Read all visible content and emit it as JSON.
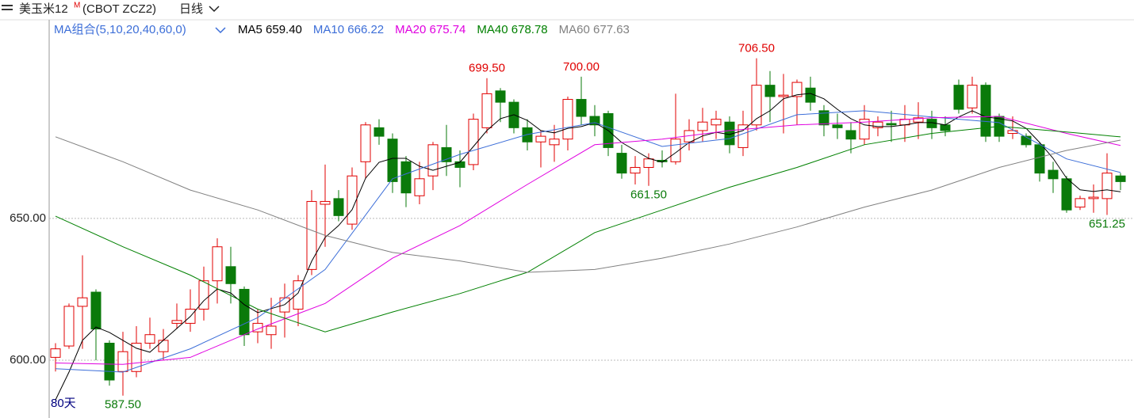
{
  "header": {
    "title": "美玉米12",
    "title_sup": "M",
    "symbol": "(CBOT ZCZ2)",
    "period": "日线",
    "ma_group": "MA组合(5,10,20,40,60,0)"
  },
  "chart_data": {
    "type": "candlestick",
    "period_label": "80天",
    "ylim": [
      579.6,
      713.1
    ],
    "yticks": [
      {
        "value": 600,
        "label": "600.00"
      },
      {
        "value": 650,
        "label": "650.00"
      }
    ],
    "grid": true,
    "up_color": "#e00000",
    "down_color": "#0a7a0a",
    "open": [
      601,
      605,
      619,
      624,
      606,
      596,
      596,
      606,
      603,
      613,
      613,
      618,
      628,
      633,
      625,
      610,
      609,
      617,
      618,
      632,
      655,
      657,
      648,
      670,
      682,
      678,
      670,
      658,
      665,
      675,
      670,
      669,
      682,
      695,
      691,
      682,
      677,
      676,
      678,
      692,
      686,
      687,
      673,
      666,
      668,
      670.5,
      670,
      677,
      681,
      683,
      684,
      675,
      683,
      697,
      693,
      693,
      696,
      688,
      683,
      681,
      678,
      682,
      683.5,
      683,
      684,
      685,
      683,
      697,
      689,
      697,
      686,
      680,
      679,
      676,
      667,
      664,
      654,
      657,
      657,
      665
    ],
    "close": [
      604,
      619,
      622,
      611,
      593,
      603,
      606,
      609,
      607,
      614,
      618,
      628,
      640,
      627,
      609,
      613,
      612,
      622,
      628,
      656,
      656,
      651,
      665,
      683,
      679,
      663,
      659,
      664,
      676,
      670,
      668,
      685,
      694,
      691,
      682,
      677,
      679,
      678,
      692,
      686,
      683,
      675,
      666,
      668,
      671,
      670,
      678,
      681,
      684,
      685,
      676,
      683,
      697,
      693,
      693.5,
      698,
      691,
      683,
      682,
      678,
      685,
      684,
      683,
      685,
      685.5,
      682,
      681,
      688.5,
      697,
      679,
      679,
      681,
      676,
      666,
      664,
      653,
      657,
      657.5,
      666,
      663
    ],
    "high": [
      606,
      620,
      637,
      625,
      607,
      610,
      612,
      615,
      611,
      620,
      625,
      633,
      643,
      640,
      626,
      618,
      622,
      627,
      630,
      660,
      669,
      660,
      668,
      684,
      685,
      680,
      672,
      670,
      677,
      683,
      674,
      687,
      699.5,
      696,
      692,
      685,
      681,
      683,
      693,
      700,
      690,
      688,
      676,
      672,
      673,
      674,
      694,
      685,
      689,
      688,
      686,
      688,
      706.5,
      702,
      701,
      699,
      700,
      690,
      687,
      684,
      690,
      686,
      688,
      690,
      691,
      688,
      686,
      699,
      700,
      698,
      687,
      686,
      680,
      677,
      670,
      665,
      658,
      662,
      673,
      666
    ],
    "low": [
      596,
      604,
      604,
      600,
      591,
      587.5,
      594,
      604,
      600,
      611,
      610,
      614,
      620,
      620,
      605,
      606,
      604,
      608,
      612,
      630,
      640,
      649,
      646,
      664,
      676,
      659,
      654,
      655,
      660,
      665,
      661,
      667,
      680,
      684,
      680,
      674,
      668,
      670,
      674,
      683,
      679,
      672,
      664,
      662,
      661.5,
      668,
      669,
      674,
      677,
      678,
      673,
      672,
      681,
      684,
      680,
      683,
      688,
      679,
      678,
      673,
      676,
      679,
      677,
      677,
      678,
      678,
      679,
      687,
      687,
      677,
      677,
      678,
      675,
      663,
      659,
      652,
      653,
      652,
      651.25,
      660
    ],
    "annotations": [
      {
        "value": 587.5,
        "label": "587.50",
        "color": "#0a7a0a"
      },
      {
        "value": 699.5,
        "label": "699.50",
        "color": "#e00000"
      },
      {
        "value": 661.5,
        "label": "661.50",
        "color": "#0a7a0a"
      },
      {
        "value": 706.5,
        "label": "706.50",
        "color": "#e00000"
      },
      {
        "value": 700,
        "label": "700.00",
        "color": "#e00000"
      },
      {
        "value": 651.25,
        "label": "651.25",
        "color": "#0a7a0a"
      }
    ],
    "series": [
      {
        "name": "MA5",
        "legend_value": "659.40",
        "color": "#000000",
        "values": [
          586.0,
          595.8,
          607.0,
          611.7,
          609.8,
          607.0,
          604.2,
          602.8,
          607.0,
          611.2,
          615.4,
          621.0,
          625.1,
          623.7,
          619.6,
          616.8,
          618.2,
          619.6,
          623.7,
          634.9,
          643.3,
          647.5,
          653.1,
          664.2,
          669.8,
          671.2,
          671.2,
          668.4,
          667.0,
          668.4,
          669.8,
          675.4,
          681.0,
          685.2,
          686.6,
          684.6,
          681.0,
          680.2,
          681.8,
          682.4,
          683.8,
          681.0,
          676.8,
          674.0,
          671.2,
          669.8,
          673.2,
          676.8,
          679.1,
          680.4,
          679.6,
          681.0,
          685.2,
          688.0,
          692.2,
          693.6,
          694.1,
          692.2,
          688.5,
          685.2,
          683.0,
          682.4,
          682.4,
          683.0,
          683.8,
          683.8,
          683.0,
          685.8,
          688.0,
          685.8,
          685.2,
          684.4,
          681.8,
          676.8,
          671.2,
          664.2,
          660.1,
          659.5,
          660.1,
          659.4
        ]
      },
      {
        "name": "MA10",
        "legend_value": "666.22",
        "color": "#3c6ed8",
        "x": [
          0,
          5,
          10,
          15,
          20,
          25,
          30,
          35,
          40,
          45,
          50,
          55,
          60,
          65,
          70,
          75,
          79
        ],
        "values": [
          597,
          595.8,
          604,
          615,
          632,
          664,
          672.6,
          679.6,
          683.8,
          675.4,
          678.2,
          686.6,
          688,
          685.8,
          683.8,
          671,
          666.22
        ]
      },
      {
        "name": "MA20",
        "legend_value": "675.74",
        "color": "#e000e0",
        "x": [
          0,
          5,
          10,
          15,
          20,
          25,
          30,
          35,
          40,
          45,
          50,
          55,
          60,
          65,
          70,
          75,
          79
        ],
        "values": [
          599,
          598.5,
          601,
          611,
          620,
          636,
          647.5,
          662,
          676,
          678,
          681,
          683,
          684,
          685.5,
          686,
          680,
          675.74
        ]
      },
      {
        "name": "MA40",
        "legend_value": "678.78",
        "color": "#008000",
        "x": [
          0,
          5,
          10,
          15,
          20,
          25,
          30,
          35,
          40,
          45,
          50,
          55,
          60,
          65,
          70,
          75,
          79
        ],
        "values": [
          650.8,
          640,
          630,
          618,
          610,
          617,
          623.5,
          631,
          645,
          653,
          661,
          668,
          676,
          680,
          682.5,
          680.5,
          678.78
        ]
      },
      {
        "name": "MA60",
        "legend_value": "677.63",
        "color": "#808080",
        "x": [
          0,
          5,
          10,
          15,
          20,
          25,
          30,
          35,
          40,
          45,
          50,
          55,
          60,
          65,
          70,
          75,
          79
        ],
        "values": [
          678.8,
          670,
          660,
          653,
          644,
          638,
          635,
          631,
          632,
          636,
          641,
          647,
          654,
          660,
          668,
          674,
          677.63
        ]
      }
    ]
  }
}
